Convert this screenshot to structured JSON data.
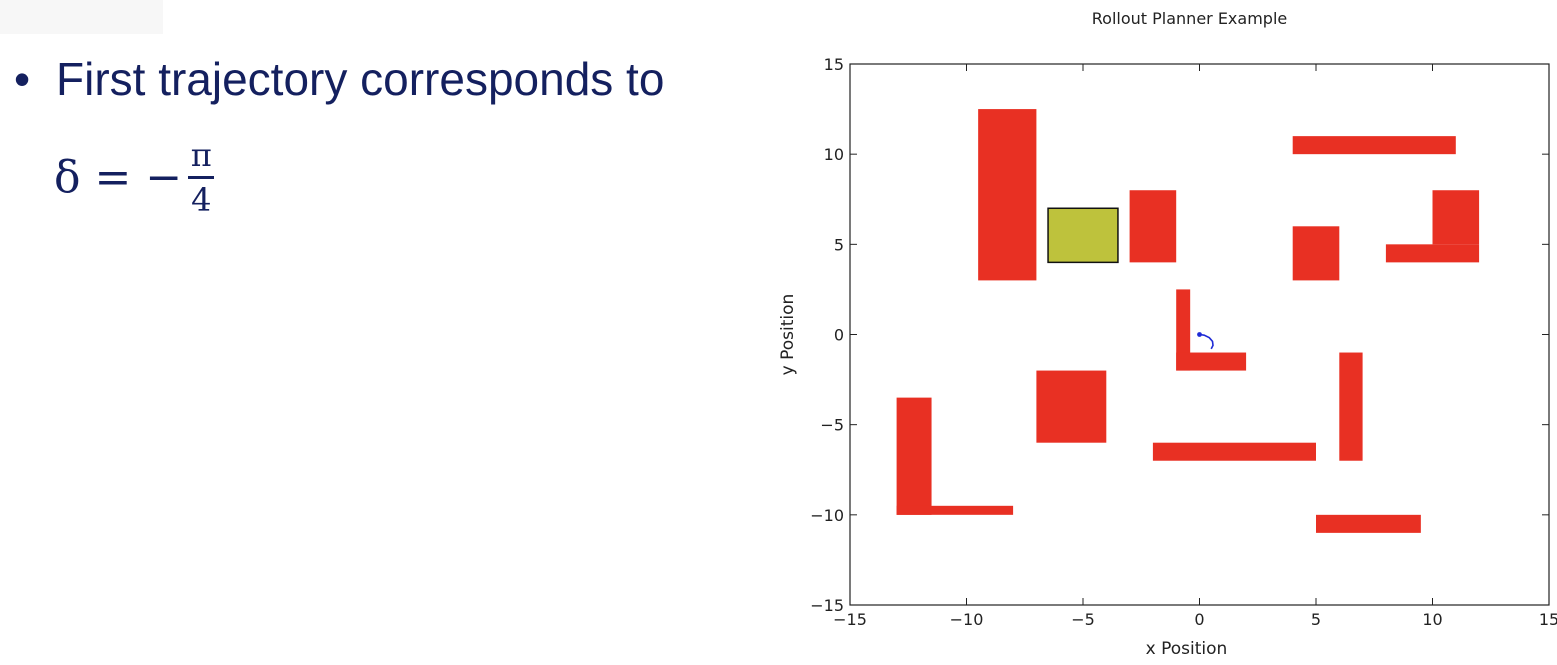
{
  "slide": {
    "bullet": "•",
    "text": "First trajectory corresponds to",
    "formula": {
      "lhs": "δ",
      "eq": "=",
      "minus": "−",
      "numerator": "π",
      "denominator": "4"
    }
  },
  "chart_data": {
    "type": "scatter",
    "title": "Rollout Planner Example",
    "xlabel": "x Position",
    "ylabel": "y Position",
    "xlim": [
      -15,
      15
    ],
    "ylim": [
      -15,
      15
    ],
    "xticks": [
      -15,
      -10,
      -5,
      0,
      5,
      10,
      15
    ],
    "yticks": [
      -15,
      -10,
      -5,
      0,
      5,
      10,
      15
    ],
    "xtick_labels": [
      "−15",
      "−10",
      "−5",
      "0",
      "5",
      "10",
      "15"
    ],
    "ytick_labels": [
      "−15",
      "−10",
      "−5",
      "0",
      "5",
      "10",
      "15"
    ],
    "grid": false,
    "obstacle_color": "#e83023",
    "goal_color": "#bec23c",
    "trajectory_color": "#1f2bd6",
    "obstacles": [
      {
        "x": [
          -9.5,
          -7.0
        ],
        "y": [
          3.0,
          12.5
        ]
      },
      {
        "x": [
          -3.0,
          -1.0
        ],
        "y": [
          4.0,
          8.0
        ]
      },
      {
        "x": [
          4.0,
          11.0
        ],
        "y": [
          10.0,
          11.0
        ]
      },
      {
        "x": [
          4.0,
          6.0
        ],
        "y": [
          3.0,
          6.0
        ]
      },
      {
        "x": [
          8.0,
          12.0
        ],
        "y": [
          4.0,
          5.0
        ]
      },
      {
        "x": [
          10.0,
          12.0
        ],
        "y": [
          5.0,
          8.0
        ]
      },
      {
        "x": [
          -1.0,
          -0.4
        ],
        "y": [
          -2.0,
          2.5
        ]
      },
      {
        "x": [
          -1.0,
          2.0
        ],
        "y": [
          -2.0,
          -1.0
        ]
      },
      {
        "x": [
          -7.0,
          -4.0
        ],
        "y": [
          -6.0,
          -2.0
        ]
      },
      {
        "x": [
          -2.0,
          5.0
        ],
        "y": [
          -7.0,
          -6.0
        ]
      },
      {
        "x": [
          6.0,
          7.0
        ],
        "y": [
          -7.0,
          -1.0
        ]
      },
      {
        "x": [
          -13.0,
          -11.5
        ],
        "y": [
          -10.0,
          -3.5
        ]
      },
      {
        "x": [
          -13.0,
          -8.0
        ],
        "y": [
          -10.0,
          -9.5
        ]
      },
      {
        "x": [
          5.0,
          9.5
        ],
        "y": [
          -11.0,
          -10.0
        ]
      }
    ],
    "goal": {
      "x": [
        -6.5,
        -3.5
      ],
      "y": [
        4.0,
        7.0
      ]
    },
    "trajectory": {
      "x": [
        0.0,
        0.2,
        0.42,
        0.56,
        0.58,
        0.5
      ],
      "y": [
        0.0,
        -0.04,
        -0.18,
        -0.38,
        -0.6,
        -0.8
      ]
    }
  }
}
